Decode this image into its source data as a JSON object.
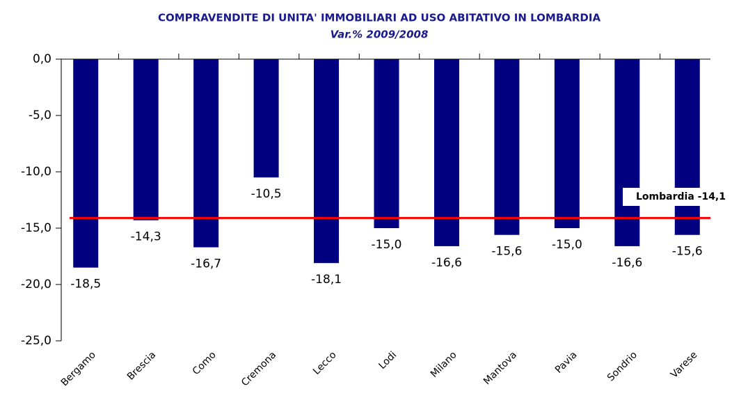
{
  "chart_data": {
    "type": "bar",
    "title": "COMPRAVENDITE DI UNITA' IMMOBILIARI AD USO ABITATIVO IN LOMBARDIA",
    "subtitle": "Var.% 2009/2008",
    "categories": [
      "Bergamo",
      "Brescia",
      "Como",
      "Cremona",
      "Lecco",
      "Lodi",
      "Milano",
      "Mantova",
      "Pavia",
      "Sondrio",
      "Varese"
    ],
    "values": [
      -18.5,
      -14.3,
      -16.7,
      -10.5,
      -18.1,
      -15.0,
      -16.6,
      -15.6,
      -15.0,
      -16.6,
      -15.6
    ],
    "value_labels": [
      "-18,5",
      "-14,3",
      "-16,7",
      "-10,5",
      "-18,1",
      "-15,0",
      "-16,6",
      "-15,6",
      "-15,0",
      "-16,6",
      "-15,6"
    ],
    "color": "#000080",
    "ylim": [
      -25,
      0
    ],
    "yticks": [
      {
        "value": 0,
        "label": "0,0"
      },
      {
        "value": -5,
        "label": "-5,0"
      },
      {
        "value": -10,
        "label": "-10,0"
      },
      {
        "value": -15,
        "label": "-15,0"
      },
      {
        "value": -20,
        "label": "-20,0"
      },
      {
        "value": -25,
        "label": "-25,0"
      }
    ],
    "grid": false,
    "reference_line": {
      "value": -14.1,
      "label": "Lombardia -14,1",
      "color": "#ff0000"
    }
  }
}
